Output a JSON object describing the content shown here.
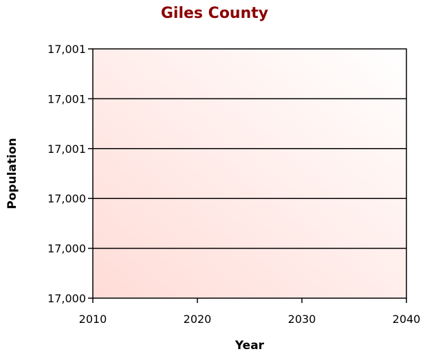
{
  "chart_data": {
    "type": "line",
    "title": "Giles County",
    "xlabel": "Year",
    "ylabel": "Population",
    "x_ticks": [
      "2010",
      "2020",
      "2030",
      "2040"
    ],
    "xlim": [
      2010,
      2040
    ],
    "y_ticks": [
      "17,000",
      "17,000",
      "17,000",
      "17,001",
      "17,001",
      "17,001"
    ],
    "grid": true,
    "legend": "none",
    "series": []
  },
  "colors": {
    "title": "#8b0000",
    "plot_gradient_light": "#ffffff",
    "plot_gradient_dark": "#ffdcd7",
    "gridline": "#000000"
  }
}
